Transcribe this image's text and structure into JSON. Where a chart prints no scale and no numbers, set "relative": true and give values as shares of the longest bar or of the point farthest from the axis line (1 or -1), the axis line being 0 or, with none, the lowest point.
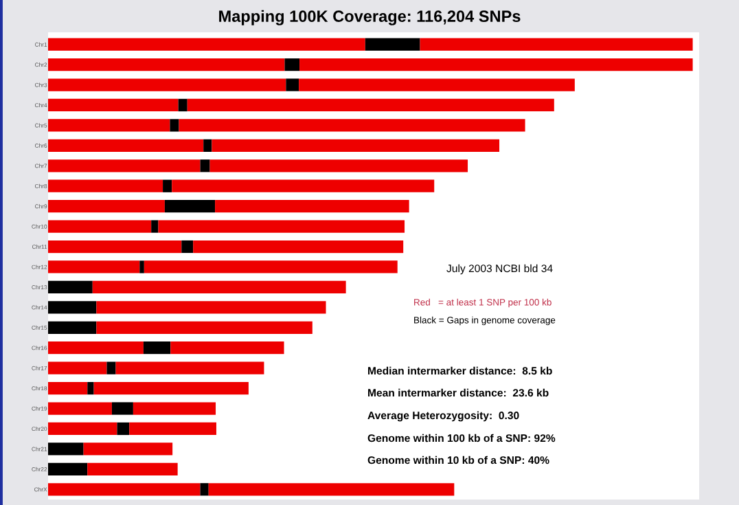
{
  "chart_data": {
    "type": "bar",
    "orientation": "horizontal",
    "stacked": true,
    "relative": true,
    "title": "Mapping 100K Coverage: 116,204 SNPs",
    "categories": [
      "Chr1",
      "Chr2",
      "Chr3",
      "Chr4",
      "Chr5",
      "Chr6",
      "Chr7",
      "Chr8",
      "Chr9",
      "Chr10",
      "Chr11",
      "Chr12",
      "Chr13",
      "Chr14",
      "Chr15",
      "Chr16",
      "Chr17",
      "Chr18",
      "Chr19",
      "Chr20",
      "Chr21",
      "Chr22",
      "ChrX"
    ],
    "series": [
      {
        "color": "#ee0000",
        "values": [
          0.492,
          0.367,
          0.369,
          0.202,
          0.189,
          0.241,
          0.236,
          0.178,
          0.181,
          0.16,
          0.207,
          0.142,
          0,
          0,
          0,
          0.148,
          0.091,
          0.061,
          0.099,
          0.107,
          0,
          0,
          0.236
        ]
      },
      {
        "color": "#000000",
        "values": [
          0.085,
          0.023,
          0.02,
          0.014,
          0.014,
          0.013,
          0.015,
          0.014,
          0.078,
          0.011,
          0.018,
          0.007,
          0.069,
          0.075,
          0.075,
          0.042,
          0.014,
          0.01,
          0.033,
          0.019,
          0.055,
          0.061,
          0.013
        ]
      },
      {
        "color": "#ee0000",
        "values": [
          0.423,
          0.61,
          0.428,
          0.569,
          0.537,
          0.446,
          0.4,
          0.407,
          0.301,
          0.382,
          0.326,
          0.393,
          0.393,
          0.356,
          0.335,
          0.176,
          0.23,
          0.24,
          0.128,
          0.135,
          0.138,
          0.14,
          0.381
        ]
      }
    ],
    "annotations": [
      "July 2003 NCBI bld 34",
      "Red   = at least 1 SNP per 100 kb",
      "Black = Gaps in genome coverage",
      "Median intermarker distance:  8.5 kb",
      "Mean intermarker distance:  23.6 kb",
      "Average Heterozygosity:  0.30",
      "Genome within 100 kb of a SNP: 92%",
      "Genome within 10 kb of a SNP: 40%"
    ],
    "grid": false,
    "legend": false
  }
}
